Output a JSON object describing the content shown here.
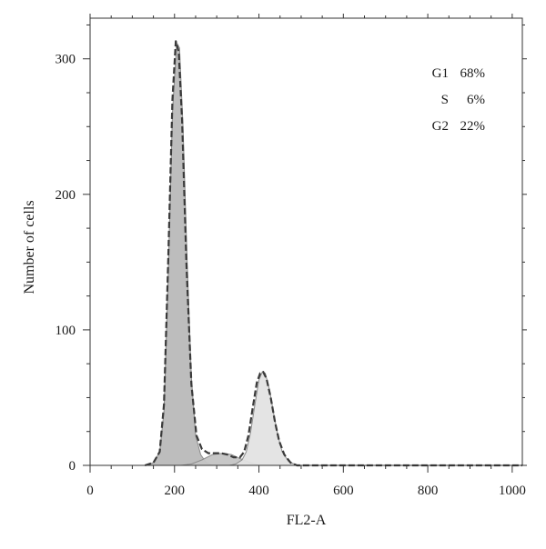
{
  "chart_data": {
    "type": "area",
    "title": "",
    "xlabel": "FL2-A",
    "ylabel": "Number of cells",
    "xlim": [
      0,
      1024
    ],
    "ylim": [
      0,
      330
    ],
    "x_ticks": [
      0,
      200,
      400,
      600,
      800,
      1000
    ],
    "y_ticks": [
      0,
      100,
      200,
      300
    ],
    "grid": false,
    "legend": "none",
    "annotations": [
      {
        "label": "G1",
        "value": "68%"
      },
      {
        "label": "S",
        "value": "6%"
      },
      {
        "label": "G2",
        "value": "22%"
      }
    ],
    "series": [
      {
        "role": "G1 fit",
        "color": "#b9b9b9",
        "x": [
          130,
          150,
          165,
          175,
          185,
          195,
          205,
          212,
          220,
          230,
          240,
          250,
          262,
          275,
          290
        ],
        "y": [
          0,
          2,
          10,
          40,
          140,
          260,
          312,
          308,
          250,
          150,
          65,
          22,
          8,
          2,
          0
        ]
      },
      {
        "role": "S fit",
        "color": "#c4c4c4",
        "x": [
          215,
          240,
          265,
          290,
          315,
          335,
          355,
          380,
          400
        ],
        "y": [
          0,
          1,
          4,
          8,
          9,
          8,
          5,
          2,
          0
        ]
      },
      {
        "role": "G2 fit",
        "color": "#e3e3e3",
        "x": [
          330,
          345,
          360,
          370,
          380,
          390,
          400,
          408,
          415,
          425,
          435,
          445,
          455,
          470,
          490,
          505
        ],
        "y": [
          0,
          1,
          4,
          10,
          24,
          44,
          63,
          69,
          68,
          56,
          38,
          22,
          10,
          3,
          0,
          0
        ]
      },
      {
        "role": "measured histogram",
        "color": "#3a3a3a",
        "x": [
          130,
          150,
          165,
          175,
          185,
          195,
          203,
          210,
          218,
          228,
          240,
          252,
          265,
          280,
          295,
          310,
          325,
          340,
          355,
          365,
          375,
          385,
          395,
          403,
          410,
          418,
          428,
          438,
          448,
          460,
          475,
          490,
          505,
          1024
        ],
        "y": [
          0,
          2,
          10,
          45,
          150,
          270,
          313,
          305,
          255,
          150,
          60,
          22,
          12,
          9,
          9,
          9,
          8,
          6,
          6,
          10,
          22,
          42,
          61,
          68,
          69,
          64,
          50,
          32,
          18,
          8,
          2,
          0,
          0,
          0
        ]
      }
    ]
  }
}
